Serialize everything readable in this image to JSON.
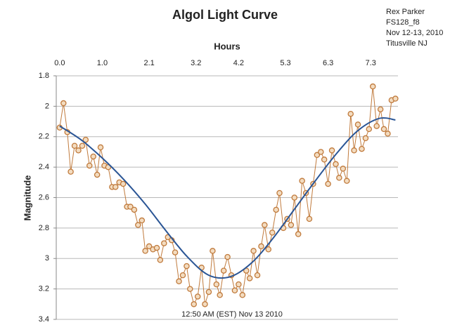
{
  "chart_data": {
    "type": "line",
    "title": "Algol Light Curve",
    "annotations": [
      "Rex Parker",
      "FS128_f8",
      "Nov 12-13, 2010",
      "Titusville NJ"
    ],
    "footnote": "12:50 AM (EST) Nov 13 2010",
    "x_label": "Hours",
    "y_label": "Magnitude",
    "x_axis_position": "top",
    "y_inverted": true,
    "grid": true,
    "xlim": [
      -0.08,
      7.94
    ],
    "xticks": [
      {
        "value": 0,
        "label": "0.0"
      },
      {
        "value": 1,
        "label": "1.0"
      },
      2.1,
      3.2,
      4.2,
      5.3,
      6.3,
      7.3
    ],
    "ylim": [
      1.8,
      3.4
    ],
    "yticks": [
      1.8,
      2,
      2.2,
      2.4,
      2.6,
      2.8,
      3,
      3.2,
      3.4
    ],
    "series": [
      {
        "color": "#c07a3c",
        "marker": true,
        "x": [
          0,
          0.09,
          0.18,
          0.26,
          0.35,
          0.44,
          0.53,
          0.61,
          0.7,
          0.79,
          0.88,
          0.96,
          1.05,
          1.14,
          1.23,
          1.31,
          1.4,
          1.49,
          1.58,
          1.66,
          1.75,
          1.84,
          1.93,
          2.01,
          2.1,
          2.19,
          2.28,
          2.36,
          2.45,
          2.54,
          2.63,
          2.71,
          2.8,
          2.89,
          2.98,
          3.06,
          3.15,
          3.24,
          3.33,
          3.41,
          3.5,
          3.59,
          3.68,
          3.76,
          3.85,
          3.94,
          4.03,
          4.11,
          4.2,
          4.29,
          4.38,
          4.46,
          4.55,
          4.64,
          4.73,
          4.81,
          4.9,
          4.99,
          5.08,
          5.16,
          5.25,
          5.34,
          5.43,
          5.51,
          5.6,
          5.69,
          5.78,
          5.86,
          5.95,
          6.04,
          6.13,
          6.21,
          6.3,
          6.39,
          6.48,
          6.56,
          6.65,
          6.74,
          6.83,
          6.91,
          7.0,
          7.09,
          7.18,
          7.26,
          7.35,
          7.44,
          7.53,
          7.61,
          7.7,
          7.79,
          7.88
        ],
        "values": [
          2.14,
          1.98,
          2.17,
          2.43,
          2.26,
          2.29,
          2.26,
          2.22,
          2.39,
          2.33,
          2.45,
          2.27,
          2.39,
          2.4,
          2.53,
          2.53,
          2.5,
          2.51,
          2.66,
          2.66,
          2.68,
          2.78,
          2.75,
          2.95,
          2.92,
          2.94,
          2.93,
          3.01,
          2.9,
          2.86,
          2.88,
          2.96,
          3.15,
          3.11,
          3.05,
          3.2,
          3.3,
          3.25,
          3.06,
          3.3,
          3.22,
          2.95,
          3.17,
          3.24,
          3.08,
          2.99,
          3.11,
          3.21,
          3.17,
          3.24,
          3.08,
          3.13,
          2.95,
          3.11,
          2.92,
          2.78,
          2.94,
          2.83,
          2.68,
          2.57,
          2.8,
          2.74,
          2.78,
          2.6,
          2.84,
          2.49,
          2.57,
          2.74,
          2.51,
          2.32,
          2.3,
          2.35,
          2.51,
          2.29,
          2.38,
          2.47,
          2.41,
          2.49,
          2.05,
          2.29,
          2.12,
          2.28,
          2.21,
          2.15,
          1.87,
          2.13,
          2.02,
          2.15,
          2.18,
          1.96,
          1.95
        ]
      },
      {
        "color": "#2a5595",
        "smooth": true,
        "x": [
          0,
          0.5,
          1,
          1.5,
          2,
          2.5,
          3,
          3.5,
          4,
          4.5,
          5,
          5.5,
          6,
          6.5,
          7,
          7.5,
          7.88
        ],
        "values": [
          2.13,
          2.22,
          2.34,
          2.48,
          2.64,
          2.82,
          2.99,
          3.11,
          3.12,
          3.03,
          2.87,
          2.68,
          2.49,
          2.31,
          2.16,
          2.08,
          2.09
        ]
      }
    ]
  }
}
